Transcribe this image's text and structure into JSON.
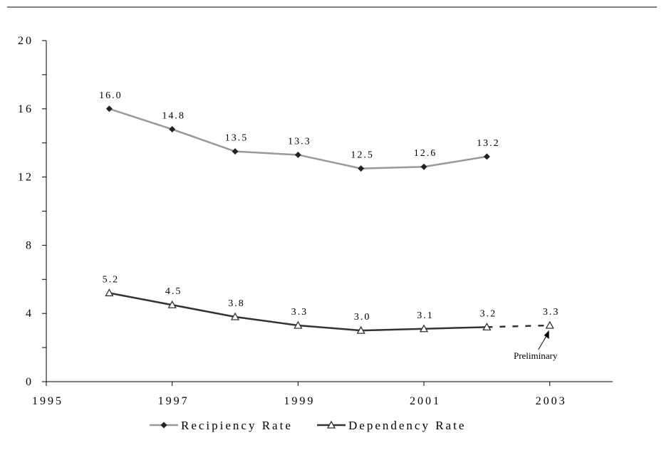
{
  "chart_data": {
    "type": "line",
    "title": "",
    "xlabel": "",
    "ylabel": "",
    "xlim": [
      1995,
      2004
    ],
    "ylim": [
      0,
      20
    ],
    "xticks": [
      1995,
      1997,
      1999,
      2001,
      2003
    ],
    "xtick_labels": [
      "1995",
      "1997",
      "1999",
      "2001",
      "2003"
    ],
    "yticks": [
      0,
      4,
      8,
      12,
      16,
      20
    ],
    "ytick_labels": [
      "0",
      "4",
      "8",
      "12",
      "16",
      "20"
    ],
    "grid": false,
    "legend_placement": "bottom",
    "series": [
      {
        "name": "Recipiency Rate",
        "color": "#999999",
        "marker": "diamond-filled",
        "x": [
          1996,
          1997,
          1998,
          1999,
          2000,
          2001,
          2002
        ],
        "y": [
          16.0,
          14.8,
          13.5,
          13.3,
          12.5,
          12.6,
          13.2
        ],
        "labels": [
          "16.0",
          "14.8",
          "13.5",
          "13.3",
          "12.5",
          "12.6",
          "13.2"
        ]
      },
      {
        "name": "Dependency Rate",
        "color": "#333333",
        "marker": "triangle-open",
        "x": [
          1996,
          1997,
          1998,
          1999,
          2000,
          2001,
          2002,
          2003
        ],
        "y": [
          5.2,
          4.5,
          3.8,
          3.3,
          3.0,
          3.1,
          3.2,
          3.3
        ],
        "labels": [
          "5.2",
          "4.5",
          "3.8",
          "3.3",
          "3.0",
          "3.1",
          "3.2",
          "3.3"
        ],
        "dashed_from": 2002
      }
    ],
    "annotations": [
      {
        "text": "Preliminary",
        "points_to": {
          "series": "Dependency Rate",
          "x": 2003
        }
      }
    ]
  }
}
